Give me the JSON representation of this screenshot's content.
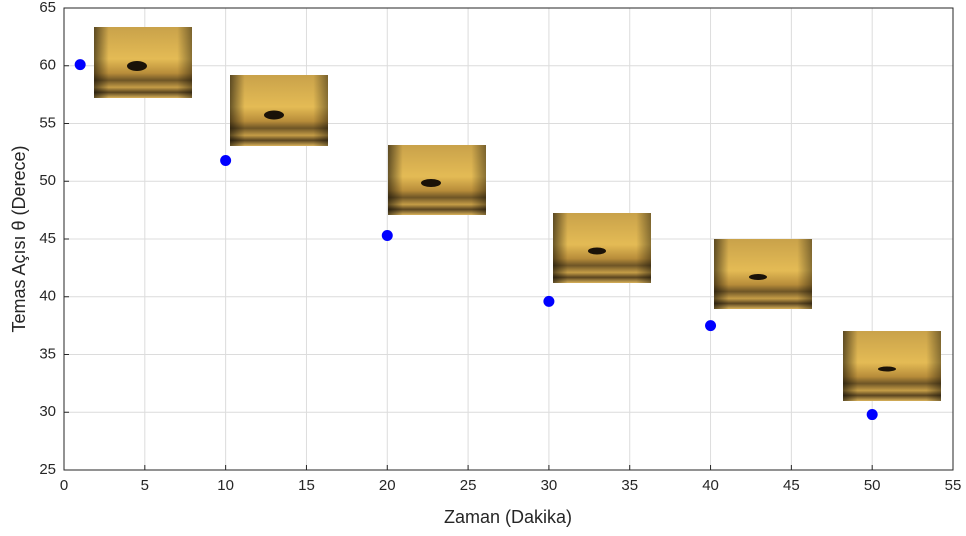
{
  "chart_data": {
    "type": "scatter",
    "x_label": "Zaman (Dakika)",
    "y_label": "Temas Açısı θ (Derece)",
    "x": [
      1,
      10,
      20,
      30,
      40,
      50
    ],
    "series": [
      {
        "color": "#0000ff",
        "values": [
          60.1,
          51.8,
          45.3,
          39.6,
          37.5,
          29.8
        ]
      }
    ],
    "xlim": [
      0,
      55
    ],
    "xticks": [
      0,
      5,
      10,
      15,
      20,
      25,
      30,
      35,
      40,
      45,
      50,
      55
    ],
    "ylim": [
      25,
      65
    ],
    "yticks": [
      25,
      30,
      35,
      40,
      45,
      50,
      55,
      60,
      65
    ],
    "grid": true
  }
}
